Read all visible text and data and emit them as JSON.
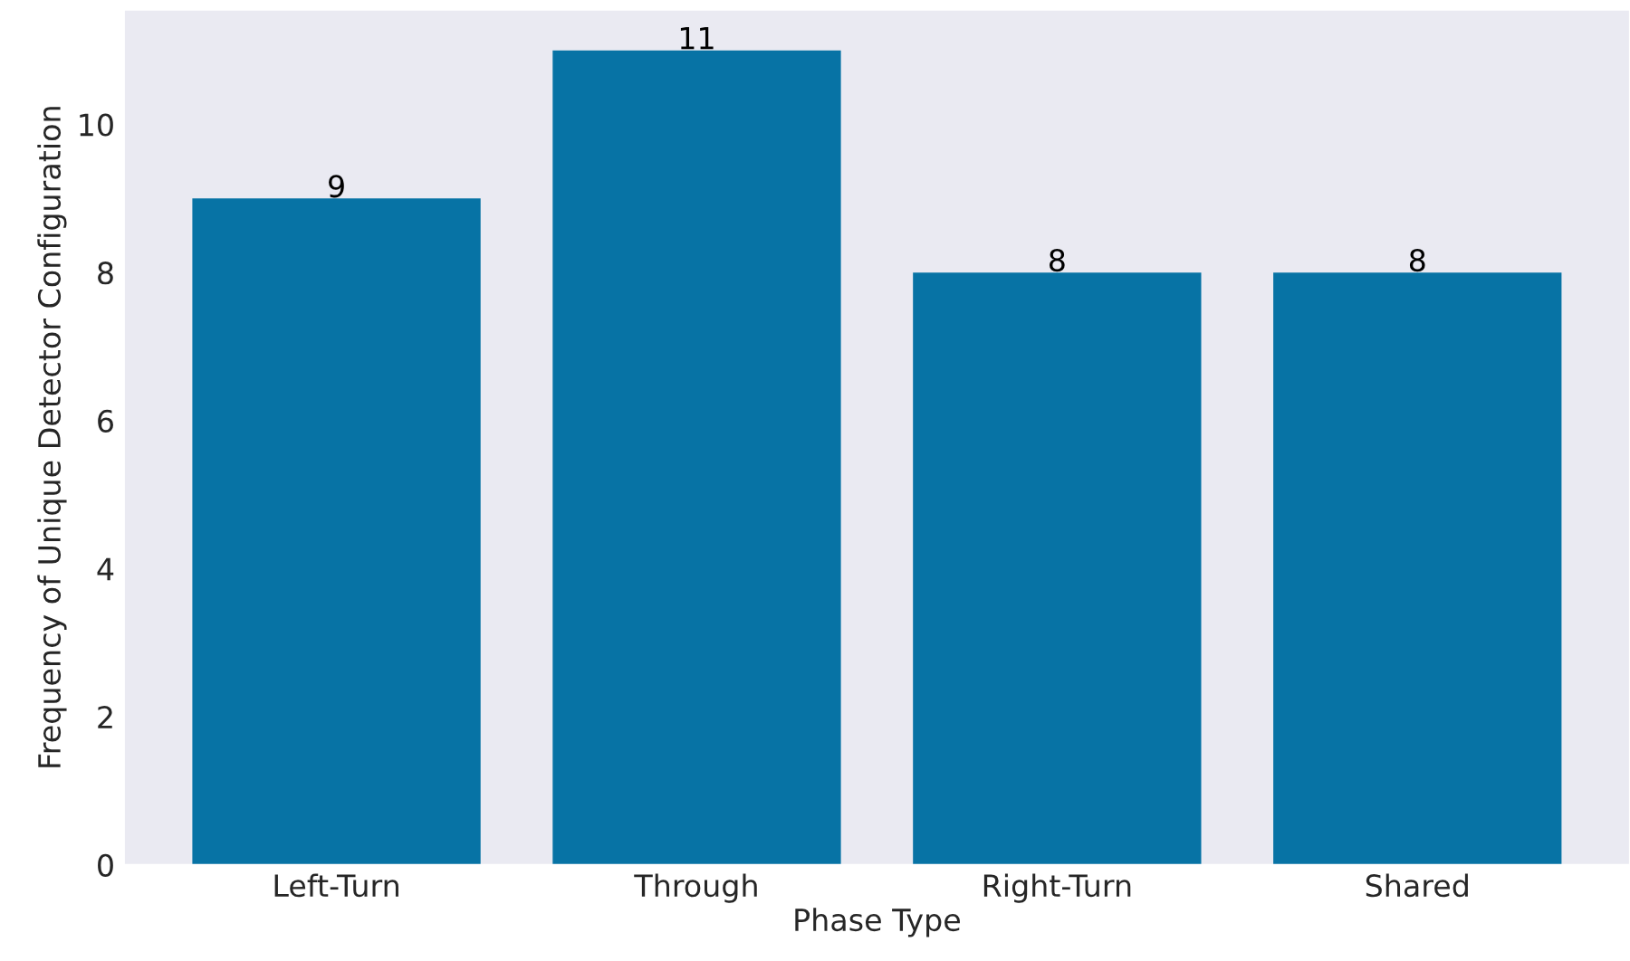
{
  "chart_data": {
    "type": "bar",
    "categories": [
      "Left-Turn",
      "Through",
      "Right-Turn",
      "Shared"
    ],
    "values": [
      9,
      11,
      8,
      8
    ],
    "color": "#0773a5",
    "xlabel": "Phase Type",
    "ylabel": "Frequency of Unique Detector Configuration",
    "ylim": [
      0,
      11.55
    ],
    "yticks": [
      0,
      2,
      4,
      6,
      8,
      10
    ],
    "data_labels": true,
    "grid": false
  }
}
